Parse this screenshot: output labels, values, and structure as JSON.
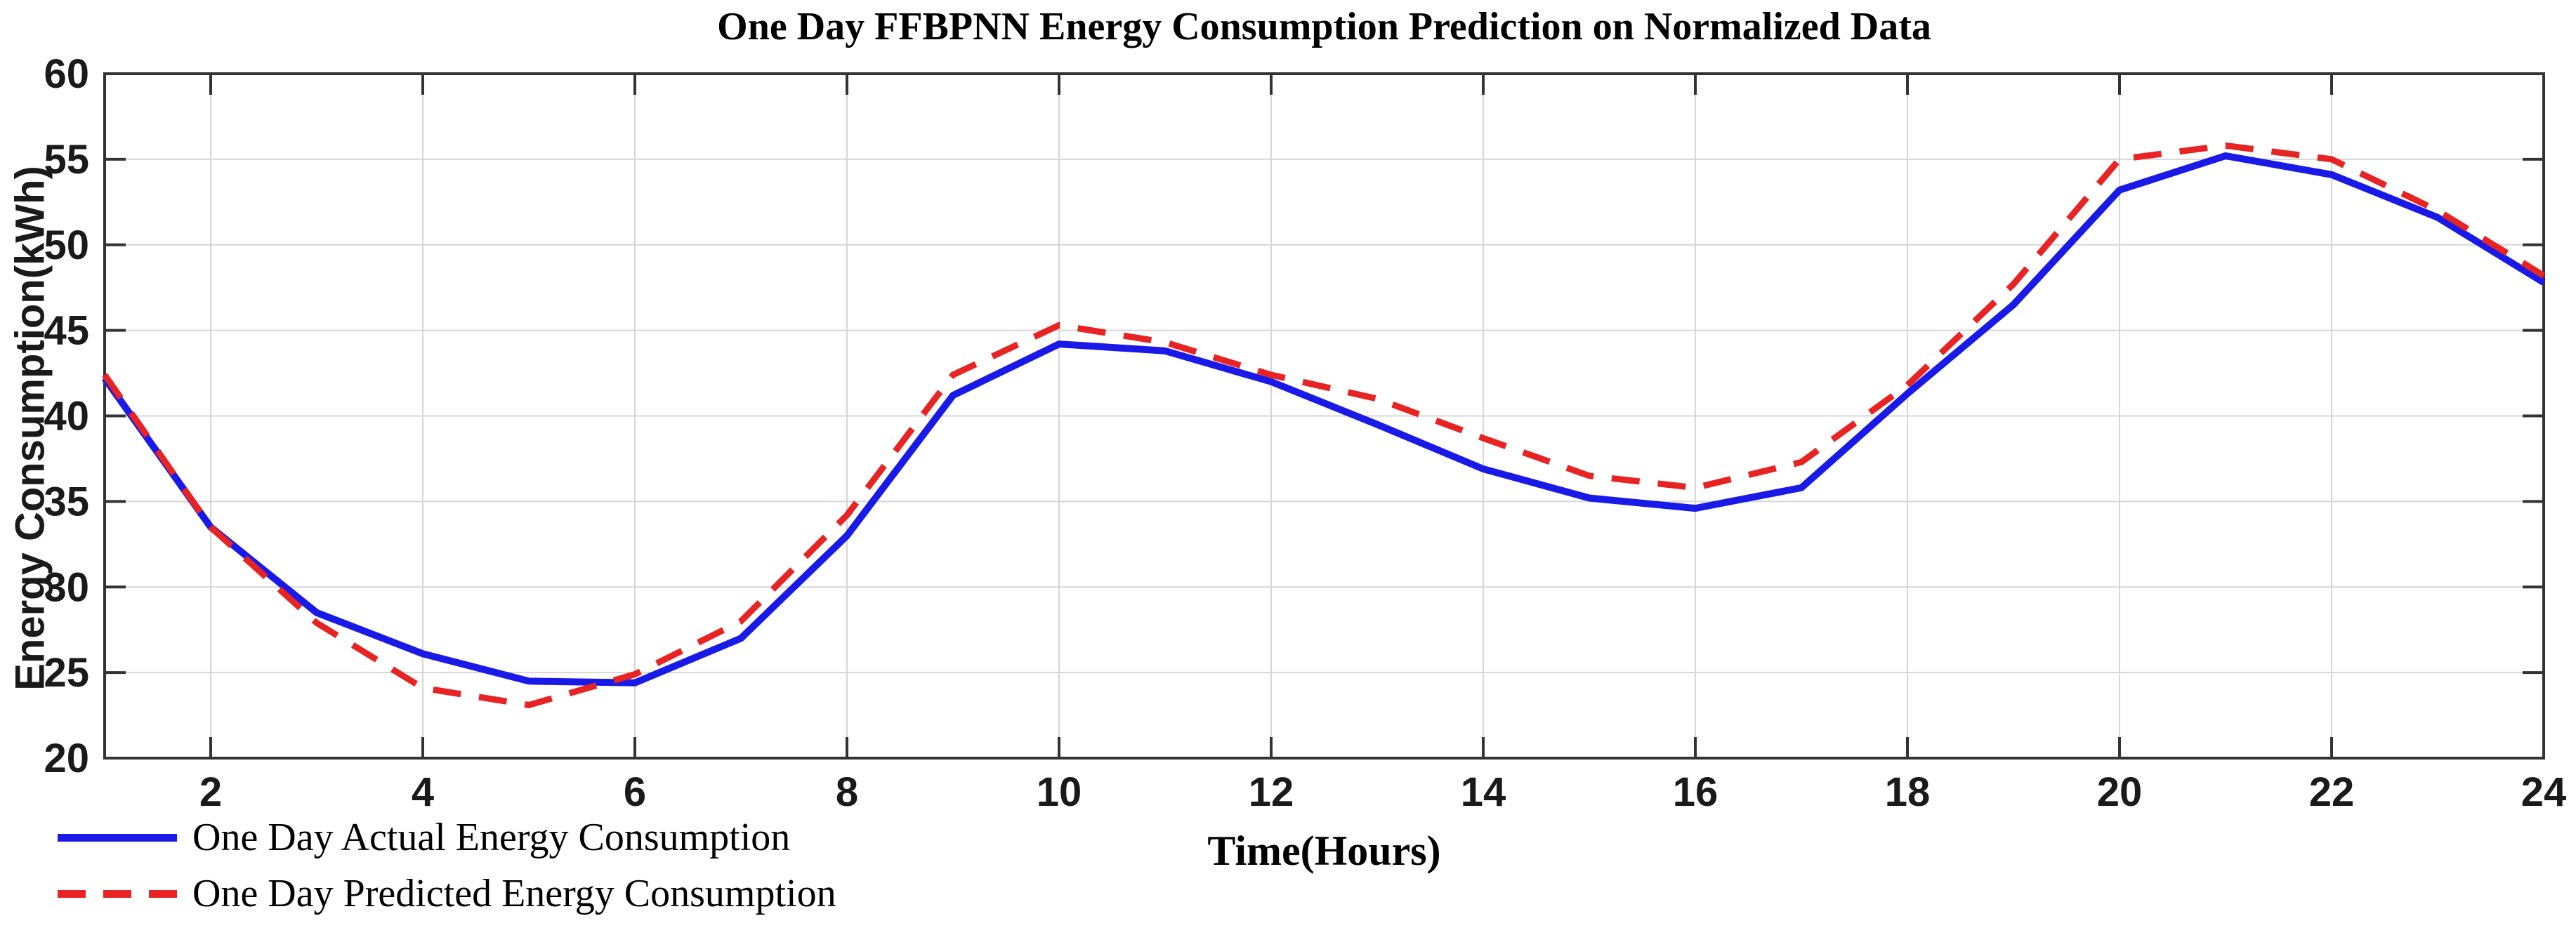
{
  "figure": {
    "title": "One Day FFBPNN Energy Consumption Prediction on Normalized Data",
    "xlabel": "Time(Hours)",
    "ylabel": "Energy Consumption(kWh)",
    "background": "#ffffff",
    "axis_color": "#333333",
    "grid_color": "#d6d6d6",
    "tick_label_color": "#1a1a1a"
  },
  "legend": {
    "items": [
      {
        "label": "One Day Actual Energy Consumption",
        "style": "solid",
        "color": "#1a1ae8"
      },
      {
        "label": "One Day Predicted Energy Consumption",
        "style": "dashed",
        "color": "#e82323"
      }
    ]
  },
  "chart_data": {
    "type": "line",
    "title": "One Day FFBPNN Energy Consumption Prediction on Normalized Data",
    "xlabel": "Time(Hours)",
    "ylabel": "Energy Consumption(kWh)",
    "xlim": [
      1,
      24
    ],
    "ylim": [
      20,
      60
    ],
    "x_ticks": [
      2,
      4,
      6,
      8,
      10,
      12,
      14,
      16,
      18,
      20,
      22,
      24
    ],
    "y_ticks": [
      20,
      25,
      30,
      35,
      40,
      45,
      50,
      55,
      60
    ],
    "grid": true,
    "legend_position": "below-left",
    "x": [
      1,
      2,
      3,
      4,
      5,
      6,
      7,
      8,
      9,
      10,
      11,
      12,
      13,
      14,
      15,
      16,
      17,
      18,
      19,
      20,
      21,
      22,
      23,
      24
    ],
    "series": [
      {
        "name": "One Day Actual Energy Consumption",
        "color": "#1a1ae8",
        "style": "solid",
        "line_width": 10,
        "values": [
          42.2,
          33.5,
          28.5,
          26.1,
          24.5,
          24.4,
          27.0,
          33.0,
          41.2,
          44.2,
          43.8,
          42.0,
          39.5,
          36.9,
          35.2,
          34.6,
          35.8,
          41.3,
          46.5,
          53.2,
          55.2,
          54.1,
          51.6,
          47.8
        ]
      },
      {
        "name": "One Day Predicted Energy Consumption",
        "color": "#e82323",
        "style": "dashed",
        "line_width": 9,
        "values": [
          42.4,
          33.5,
          27.9,
          24.1,
          23.1,
          24.9,
          28.0,
          34.2,
          42.4,
          45.3,
          44.3,
          42.4,
          41.0,
          38.7,
          36.5,
          35.8,
          37.3,
          41.8,
          47.7,
          55.0,
          55.8,
          55.0,
          52.0,
          48.2
        ]
      }
    ]
  }
}
